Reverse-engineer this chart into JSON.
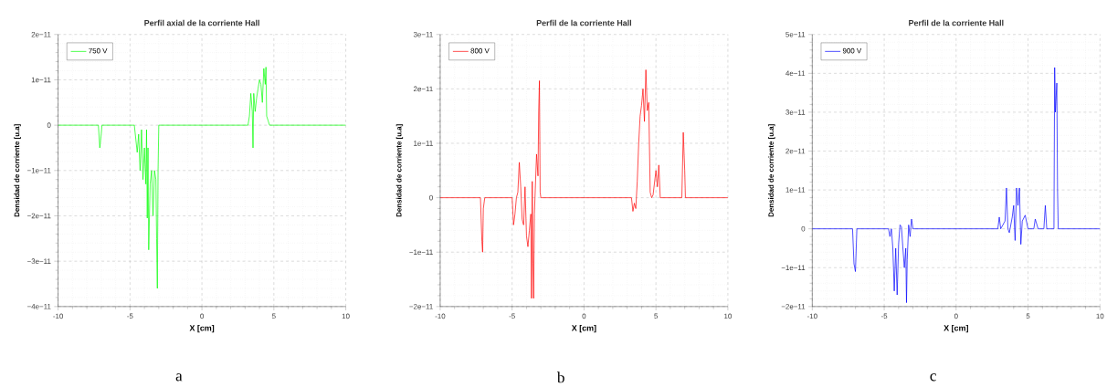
{
  "chart_data": [
    {
      "type": "line",
      "title": "Perfil axial de la corriente Hall",
      "xlabel": "X [cm]",
      "ylabel": "Densidad de corriente  [u.a]",
      "annotations": [
        "a"
      ],
      "grid": true,
      "legend": "top left",
      "xlim": [
        -10,
        10
      ],
      "ylim": [
        -4e-11,
        2e-11
      ],
      "xticks": [
        -10,
        -5,
        0,
        5,
        10
      ],
      "yticks": [
        {
          "value": -4e-11,
          "label": "−4e−11"
        },
        {
          "value": -3e-11,
          "label": "−3e−11"
        },
        {
          "value": -2e-11,
          "label": "−2e−11"
        },
        {
          "value": -1e-11,
          "label": "−1e−11"
        },
        0,
        {
          "value": 1e-11,
          "label": "1e−11"
        },
        {
          "value": 2e-11,
          "label": "2e−11"
        }
      ],
      "series": [
        {
          "name": "750 V",
          "color": "#00ff00",
          "x": [
            -10,
            -7.2,
            -7.1,
            -7.0,
            -6.95,
            -4.7,
            -4.6,
            -4.5,
            -4.4,
            -4.3,
            -4.2,
            -4.1,
            -4.0,
            -3.9,
            -3.85,
            -3.8,
            -3.75,
            -3.7,
            -3.6,
            -3.5,
            -3.4,
            -3.3,
            -3.2,
            -3.15,
            -3.1,
            -3.05,
            -3.0,
            3.2,
            3.3,
            3.4,
            3.5,
            3.55,
            3.6,
            3.7,
            3.8,
            3.9,
            4.0,
            4.1,
            4.2,
            4.3,
            4.4,
            4.45,
            4.5,
            4.6,
            4.7,
            10
          ],
          "values": [
            0,
            0,
            -5e-12,
            -2e-12,
            0,
            0,
            -3e-12,
            -6e-12,
            -2e-12,
            -1e-11,
            -1e-12,
            -1.2e-11,
            -5e-12,
            -1.3e-11,
            -1e-12,
            -2.05e-11,
            -5e-12,
            -2.75e-11,
            -1.3e-11,
            -1e-11,
            -2e-11,
            -1e-11,
            -1.2e-11,
            -2.5e-11,
            -3.6e-11,
            -1e-11,
            0,
            0,
            2e-12,
            7e-12,
            3e-12,
            -5e-12,
            7e-12,
            3e-12,
            6e-12,
            8e-12,
            1e-11,
            9e-12,
            5e-12,
            1.25e-11,
            9e-12,
            1.28e-11,
            2e-12,
            1e-12,
            0,
            0
          ]
        }
      ]
    },
    {
      "type": "line",
      "title": "Perfil de la corriente Hall",
      "xlabel": "X [cm]",
      "ylabel": "Densidad de corriente  [u.a]",
      "annotations": [
        "b"
      ],
      "grid": true,
      "legend": "top left",
      "xlim": [
        -10,
        10
      ],
      "ylim": [
        -2e-11,
        3e-11
      ],
      "xticks": [
        -10,
        -5,
        0,
        5,
        10
      ],
      "yticks": [
        {
          "value": -2e-11,
          "label": "−2e−11"
        },
        {
          "value": -1e-11,
          "label": "−1e−11"
        },
        0,
        {
          "value": 1e-11,
          "label": "1e−11"
        },
        {
          "value": 2e-11,
          "label": "2e−11"
        },
        {
          "value": 3e-11,
          "label": "3e−11"
        }
      ],
      "series": [
        {
          "name": "800 V",
          "color": "#ff0000",
          "x": [
            -10,
            -7.2,
            -7.1,
            -7.05,
            -7.0,
            -6.9,
            -5.0,
            -4.9,
            -4.8,
            -4.7,
            -4.6,
            -4.5,
            -4.4,
            -4.3,
            -4.2,
            -4.1,
            -4.0,
            -3.9,
            -3.8,
            -3.7,
            -3.65,
            -3.6,
            -3.55,
            -3.5,
            -3.45,
            -3.3,
            -3.2,
            -3.15,
            -3.1,
            -3.05,
            -3.0,
            3.3,
            3.4,
            3.5,
            3.6,
            3.7,
            3.8,
            3.9,
            4.0,
            4.1,
            4.2,
            4.3,
            4.4,
            4.5,
            4.6,
            4.7,
            4.8,
            5.0,
            5.1,
            5.2,
            5.3,
            6.8,
            6.9,
            7.0,
            7.05,
            10
          ],
          "values": [
            0,
            0,
            -8e-12,
            -1e-11,
            -2e-12,
            0,
            0,
            -5e-12,
            -3e-12,
            0,
            1e-12,
            6.5e-12,
            2e-12,
            -4e-12,
            -5e-12,
            2e-12,
            -7e-12,
            -9e-12,
            -6e-12,
            -3e-12,
            -1.85e-11,
            3e-12,
            -1.2e-11,
            -1.85e-11,
            -3e-12,
            8e-12,
            4e-12,
            1.6e-11,
            2.15e-11,
            1e-12,
            0,
            0,
            -2.5e-12,
            -1e-12,
            -2e-12,
            3e-12,
            1e-11,
            1.5e-11,
            1.7e-11,
            2e-11,
            1.4e-11,
            2.35e-11,
            1.6e-11,
            1.75e-11,
            1e-12,
            0,
            5e-13,
            5e-12,
            2e-12,
            6e-12,
            0,
            0,
            1.2e-11,
            5e-12,
            0,
            0
          ]
        }
      ]
    },
    {
      "type": "line",
      "title": "Perfil de la corriente Hall",
      "xlabel": "X [cm]",
      "ylabel": "Densidad de corriente  [u.a]",
      "annotations": [
        "c"
      ],
      "grid": true,
      "legend": "top left",
      "xlim": [
        -10,
        10
      ],
      "ylim": [
        -2e-11,
        5e-11
      ],
      "xticks": [
        -10,
        -5,
        0,
        5,
        10
      ],
      "yticks": [
        {
          "value": -2e-11,
          "label": "−2e−11"
        },
        {
          "value": -1e-11,
          "label": "−1e−11"
        },
        0,
        {
          "value": 1e-11,
          "label": "1e−11"
        },
        {
          "value": 2e-11,
          "label": "2e−11"
        },
        {
          "value": 3e-11,
          "label": "3e−11"
        },
        {
          "value": 4e-11,
          "label": "4e−11"
        },
        {
          "value": 5e-11,
          "label": "5e−11"
        }
      ],
      "series": [
        {
          "name": "900 V",
          "color": "#0000ff",
          "x": [
            -10,
            -7.2,
            -7.1,
            -7.0,
            -6.9,
            -4.7,
            -4.6,
            -4.5,
            -4.4,
            -4.3,
            -4.2,
            -4.1,
            -4.0,
            -3.9,
            -3.8,
            -3.7,
            -3.6,
            -3.5,
            -3.45,
            -3.4,
            -3.3,
            -3.2,
            -3.1,
            -3.0,
            2.9,
            3.0,
            3.1,
            3.4,
            3.5,
            3.6,
            3.7,
            3.9,
            4.0,
            4.1,
            4.2,
            4.3,
            4.4,
            4.5,
            4.6,
            4.8,
            5.0,
            5.4,
            5.5,
            5.7,
            6.1,
            6.2,
            6.3,
            6.8,
            6.85,
            6.9,
            7.0,
            7.05,
            7.1,
            10
          ],
          "values": [
            0,
            0,
            -9e-12,
            -1.1e-11,
            0,
            0,
            -2e-12,
            0,
            -5e-12,
            -1.6e-11,
            -5e-12,
            -1.7e-11,
            -4e-12,
            1e-12,
            5e-13,
            -5e-12,
            -1e-11,
            -5e-12,
            -1.9e-11,
            -8e-12,
            1e-12,
            -2e-12,
            2.5e-12,
            0,
            0,
            3e-12,
            0,
            2e-12,
            1.05e-11,
            0,
            -1e-12,
            3e-12,
            6e-12,
            -3e-12,
            1.05e-11,
            6e-12,
            1.05e-11,
            -4e-12,
            2e-12,
            3.5e-12,
            0,
            0,
            2.5e-12,
            0,
            0,
            6e-12,
            0,
            0,
            4.15e-11,
            3e-11,
            3.75e-11,
            1e-11,
            0,
            0
          ]
        }
      ]
    }
  ]
}
